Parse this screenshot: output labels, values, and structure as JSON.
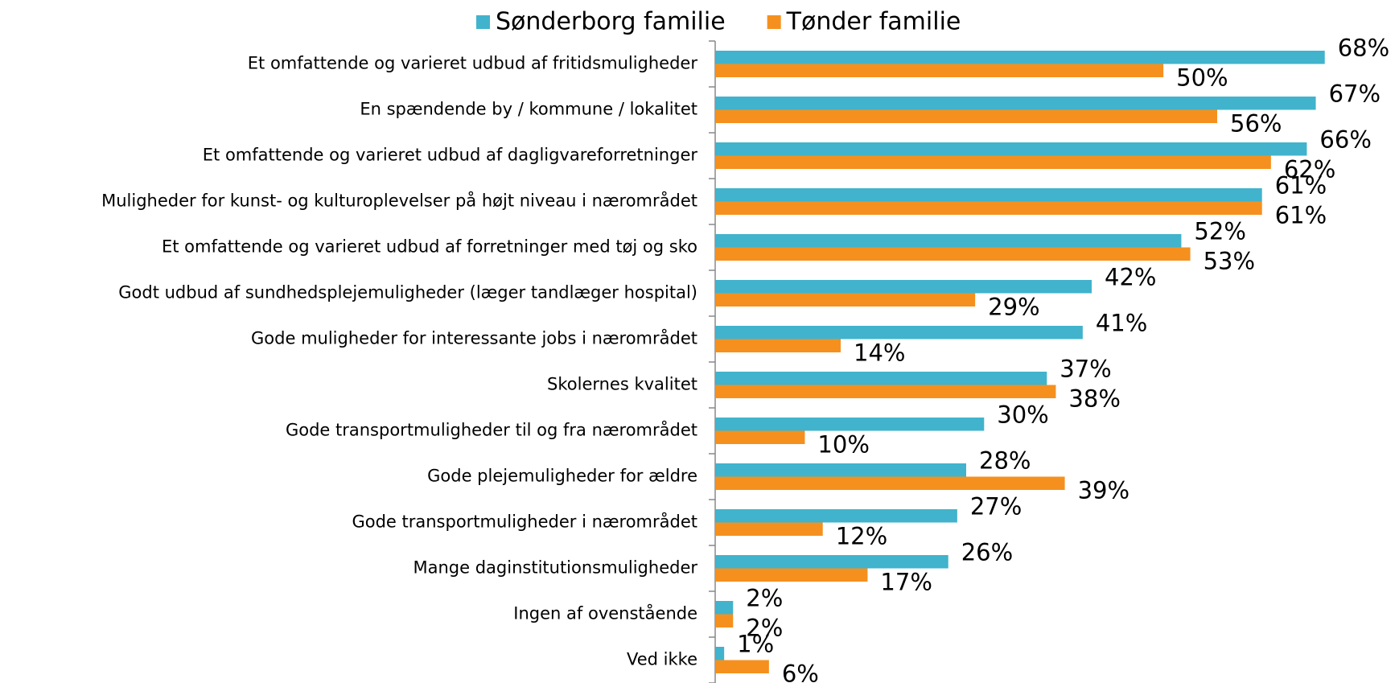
{
  "chart_data": {
    "type": "bar",
    "orientation": "horizontal",
    "categories": [
      "Et omfattende og varieret udbud af fritidsmuligheder",
      "En spændende by / kommune / lokalitet",
      "Et omfattende og varieret udbud af dagligvareforretninger",
      "Muligheder for kunst- og kulturoplevelser på højt niveau i nærområdet",
      "Et omfattende og varieret udbud af forretninger med tøj og sko",
      "Godt udbud af sundhedsplejemuligheder (læger tandlæger hospital)",
      "Gode muligheder for interessante jobs i nærområdet",
      "Skolernes kvalitet",
      "Gode transportmuligheder til og fra nærområdet",
      "Gode plejemuligheder for ældre",
      "Gode transportmuligheder i nærområdet",
      "Mange daginstitutionsmuligheder",
      "Ingen af ovenstående",
      "Ved ikke"
    ],
    "series": [
      {
        "name": "Sønderborg familie",
        "color": "#41b3cc",
        "values": [
          68,
          67,
          66,
          61,
          52,
          42,
          41,
          37,
          30,
          28,
          27,
          26,
          2,
          1
        ],
        "value_labels": [
          "68%",
          "67%",
          "66%",
          "61%",
          "52%",
          "42%",
          "41%",
          "37%",
          "30%",
          "28%",
          "27%",
          "26%",
          "2%",
          "1%"
        ]
      },
      {
        "name": "Tønder familie",
        "color": "#f5901e",
        "values": [
          50,
          56,
          62,
          61,
          53,
          29,
          14,
          38,
          10,
          39,
          12,
          17,
          2,
          6
        ],
        "value_labels": [
          "50%",
          "56%",
          "62%",
          "61%",
          "53%",
          "29%",
          "14%",
          "38%",
          "10%",
          "39%",
          "12%",
          "17%",
          "2%",
          "6%"
        ]
      }
    ],
    "xlim": [
      0,
      70
    ],
    "legend": "top"
  }
}
